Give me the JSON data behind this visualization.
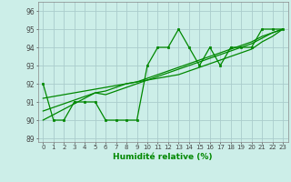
{
  "xlabel": "Humidité relative (%)",
  "background_color": "#cceee8",
  "grid_color": "#aacccc",
  "line_color": "#008800",
  "xlim": [
    -0.5,
    23.5
  ],
  "ylim": [
    88.8,
    96.5
  ],
  "yticks": [
    89,
    90,
    91,
    92,
    93,
    94,
    95,
    96
  ],
  "xticks": [
    0,
    1,
    2,
    3,
    4,
    5,
    6,
    7,
    8,
    9,
    10,
    11,
    12,
    13,
    14,
    15,
    16,
    17,
    18,
    19,
    20,
    21,
    22,
    23
  ],
  "series_markers": [
    [
      92,
      90,
      90,
      91,
      91,
      91,
      90,
      90,
      90,
      90,
      93,
      94,
      94,
      95,
      94,
      93,
      94,
      93,
      94,
      94,
      94,
      95,
      95,
      95
    ]
  ],
  "series_smooth": [
    [
      90.0,
      90.3,
      90.6,
      90.9,
      91.2,
      91.5,
      91.4,
      91.6,
      91.8,
      92.0,
      92.2,
      92.4,
      92.6,
      92.8,
      93.0,
      93.2,
      93.4,
      93.6,
      93.8,
      94.0,
      94.2,
      94.5,
      94.8,
      95.0
    ],
    [
      90.5,
      90.7,
      90.9,
      91.1,
      91.3,
      91.5,
      91.6,
      91.8,
      92.0,
      92.1,
      92.3,
      92.5,
      92.7,
      92.9,
      93.1,
      93.3,
      93.5,
      93.7,
      93.9,
      94.1,
      94.3,
      94.6,
      94.8,
      95.0
    ],
    [
      91.2,
      91.3,
      91.4,
      91.5,
      91.6,
      91.7,
      91.8,
      91.9,
      92.0,
      92.1,
      92.2,
      92.3,
      92.4,
      92.5,
      92.7,
      92.9,
      93.1,
      93.3,
      93.5,
      93.7,
      93.9,
      94.3,
      94.6,
      95.0
    ]
  ]
}
